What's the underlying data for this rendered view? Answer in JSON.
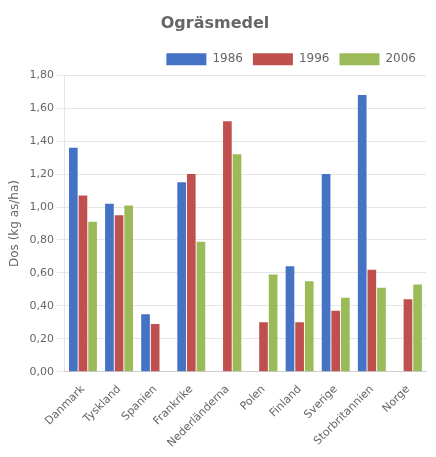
{
  "chart_data": {
    "type": "bar",
    "title": "Ogräsmedel",
    "ylabel": "Dos (kg as/ha)",
    "categories": [
      "Danmark",
      "Tyskland",
      "Spanien",
      "Frankrike",
      "Nederländerna",
      "Polen",
      "Finland",
      "Sverige",
      "Storbritannien",
      "Norge"
    ],
    "series": [
      {
        "name": "1986",
        "color": "#4472C4",
        "values": [
          1.36,
          1.02,
          0.35,
          1.15,
          null,
          null,
          0.64,
          1.2,
          1.68,
          null
        ]
      },
      {
        "name": "1996",
        "color": "#C0504D",
        "values": [
          1.07,
          0.95,
          0.29,
          1.2,
          1.52,
          0.3,
          0.3,
          0.37,
          0.62,
          0.44
        ]
      },
      {
        "name": "2006",
        "color": "#9BBB59",
        "values": [
          0.91,
          1.01,
          null,
          0.79,
          1.32,
          0.59,
          0.55,
          0.45,
          0.51,
          0.53
        ]
      }
    ],
    "ylim": [
      0,
      1.8
    ],
    "yticks": [
      {
        "value": 0.0,
        "label": "0,00"
      },
      {
        "value": 0.2,
        "label": "0,20"
      },
      {
        "value": 0.4,
        "label": "0,40"
      },
      {
        "value": 0.6,
        "label": "0,60"
      },
      {
        "value": 0.8,
        "label": "0,80"
      },
      {
        "value": 1.0,
        "label": "1,00"
      },
      {
        "value": 1.2,
        "label": "1,20"
      },
      {
        "value": 1.4,
        "label": "1,40"
      },
      {
        "value": 1.6,
        "label": "1,60"
      },
      {
        "value": 1.8,
        "label": "1,80"
      }
    ],
    "grid": true,
    "legend": "upper right"
  }
}
